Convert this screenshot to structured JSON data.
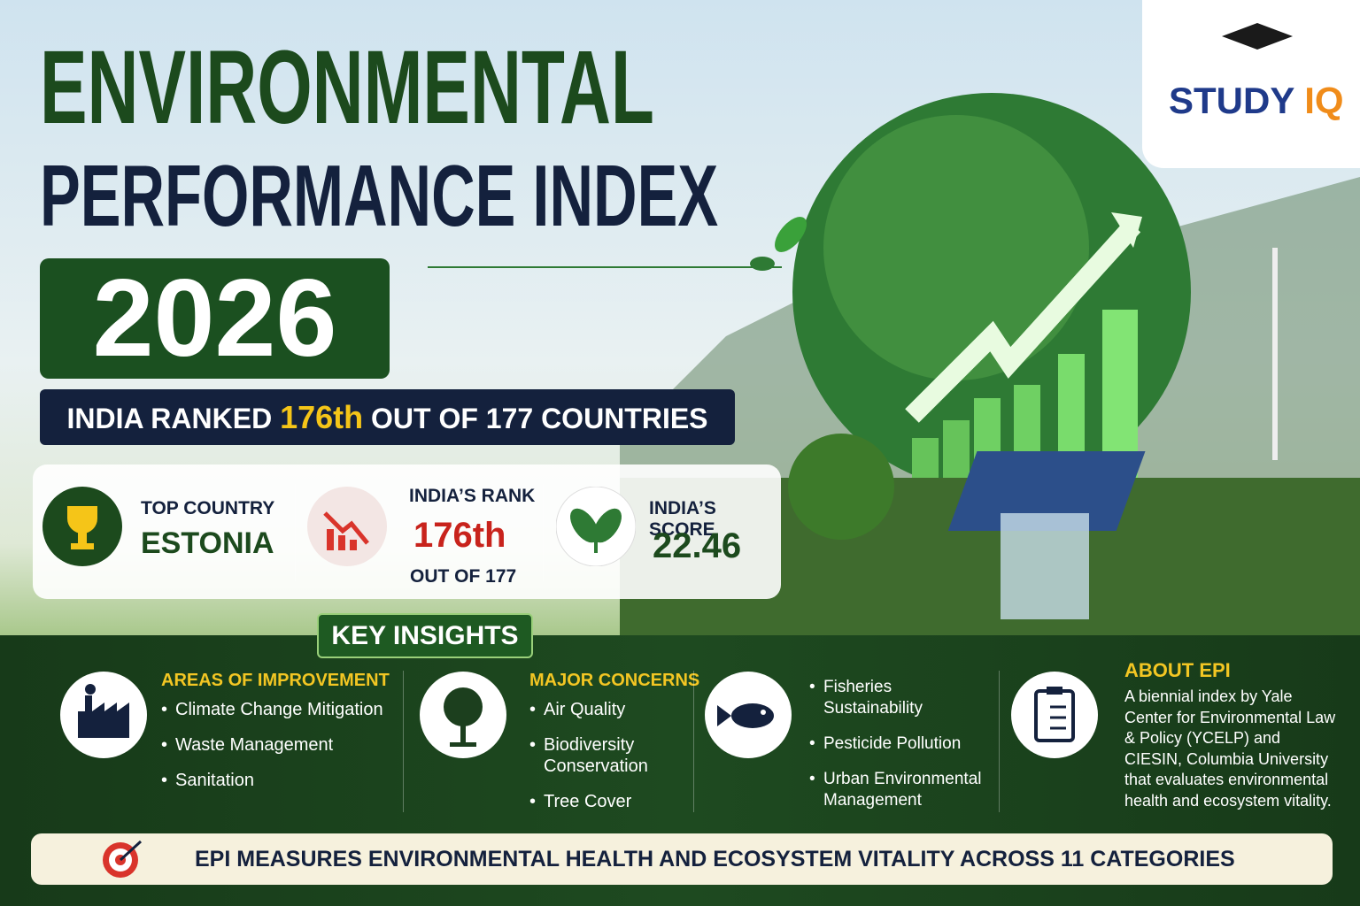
{
  "header": {
    "title_line1": "ENVIRONMENTAL",
    "title_line2": "PERFORMANCE INDEX",
    "year": "2026"
  },
  "logo": {
    "part1": "STUDY",
    "part2": "IQ"
  },
  "ranking_banner": {
    "lead": "INDIA RANKED",
    "rank": "176th",
    "tail": "OUT OF 177 COUNTRIES"
  },
  "stats": [
    {
      "label": "TOP COUNTRY",
      "value": "ESTONIA"
    },
    {
      "label": "INDIA’S RANK",
      "value": "176th",
      "note": "OUT OF 177"
    },
    {
      "label": "INDIA’S SCORE",
      "value": "22.46"
    }
  ],
  "key_insights": {
    "title": "KEY INSIGHTS",
    "sections": [
      {
        "heading": "AREAS OF IMPROVEMENT",
        "items": [
          "Climate Change Mitigation",
          "Waste Management",
          "Sanitation"
        ]
      },
      {
        "heading": "MAJOR CONCERNS",
        "items": [
          "Air Quality",
          "Biodiversity Conservation",
          "Tree Cover"
        ]
      },
      {
        "items": [
          "Fisheries Sustainability",
          "Pesticide Pollution",
          "Urban Environmental Management"
        ]
      },
      {
        "heading": "ABOUT EPI",
        "text": "A biennial index by Yale Center for Environmental Law & Policy (YCELP) and CIESIN, Columbia University that evaluates environmental health and ecosystem vitality."
      }
    ]
  },
  "footer": {
    "text": "EPI MEASURES ENVIRONMENTAL HEALTH AND ECOSYSTEM VITALITY ACROSS 11 CATEGORIES"
  }
}
